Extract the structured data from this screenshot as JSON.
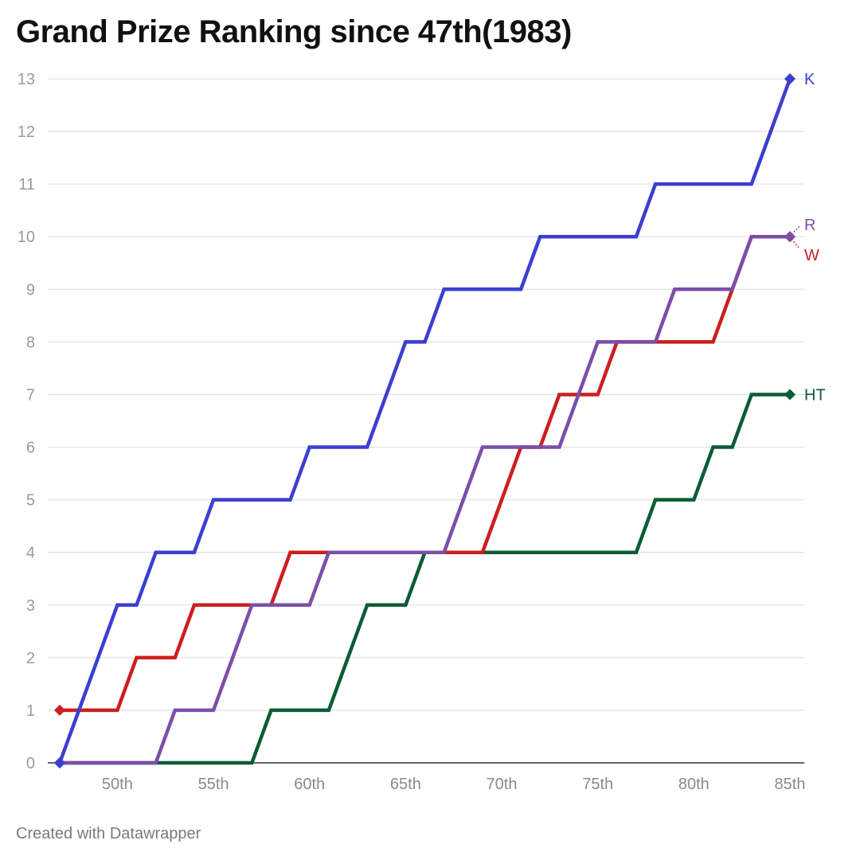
{
  "chart_data": {
    "type": "line",
    "title": "Grand Prize Ranking since 47th(1983)",
    "xlabel": "",
    "ylabel": "",
    "x": [
      47,
      48,
      49,
      50,
      51,
      52,
      53,
      54,
      55,
      56,
      57,
      58,
      59,
      60,
      61,
      62,
      63,
      64,
      65,
      66,
      67,
      68,
      69,
      70,
      71,
      72,
      73,
      74,
      75,
      76,
      77,
      78,
      79,
      80,
      81,
      82,
      83,
      84,
      85
    ],
    "xlim": [
      47,
      85
    ],
    "ylim": [
      0,
      13
    ],
    "yticks": [
      "0",
      "1",
      "2",
      "3",
      "4",
      "5",
      "6",
      "7",
      "8",
      "9",
      "10",
      "11",
      "12",
      "13"
    ],
    "xticks": [
      {
        "x": 50,
        "label": "50th"
      },
      {
        "x": 55,
        "label": "55th"
      },
      {
        "x": 60,
        "label": "60th"
      },
      {
        "x": 65,
        "label": "65th"
      },
      {
        "x": 70,
        "label": "70th"
      },
      {
        "x": 75,
        "label": "75th"
      },
      {
        "x": 80,
        "label": "80th"
      },
      {
        "x": 85,
        "label": "85th"
      }
    ],
    "grid": true,
    "series": [
      {
        "name": "K",
        "color": "#3b3fd1",
        "values": [
          0,
          1,
          2,
          3,
          3,
          4,
          4,
          4,
          5,
          5,
          5,
          5,
          5,
          6,
          6,
          6,
          6,
          7,
          8,
          8,
          9,
          9,
          9,
          9,
          9,
          10,
          10,
          10,
          10,
          10,
          10,
          11,
          11,
          11,
          11,
          11,
          11,
          12,
          13
        ]
      },
      {
        "name": "W",
        "color": "#cc1f1f",
        "values": [
          1,
          1,
          1,
          1,
          2,
          2,
          2,
          3,
          3,
          3,
          3,
          3,
          4,
          4,
          4,
          4,
          4,
          4,
          4,
          4,
          4,
          4,
          4,
          5,
          6,
          6,
          7,
          7,
          7,
          8,
          8,
          8,
          8,
          8,
          8,
          9,
          10,
          10,
          10
        ]
      },
      {
        "name": "R",
        "color": "#7b4fa8",
        "values": [
          0,
          0,
          0,
          0,
          0,
          0,
          1,
          1,
          1,
          2,
          3,
          3,
          3,
          3,
          4,
          4,
          4,
          4,
          4,
          4,
          4,
          5,
          6,
          6,
          6,
          6,
          6,
          7,
          8,
          8,
          8,
          8,
          9,
          9,
          9,
          9,
          10,
          10,
          10
        ]
      },
      {
        "name": "HT",
        "color": "#0b5c36",
        "values": [
          0,
          0,
          0,
          0,
          0,
          0,
          0,
          0,
          0,
          0,
          0,
          1,
          1,
          1,
          1,
          2,
          3,
          3,
          3,
          4,
          4,
          4,
          4,
          4,
          4,
          4,
          4,
          4,
          4,
          4,
          4,
          5,
          5,
          5,
          6,
          6,
          7,
          7,
          7
        ]
      }
    ]
  },
  "footer": "Created with Datawrapper"
}
